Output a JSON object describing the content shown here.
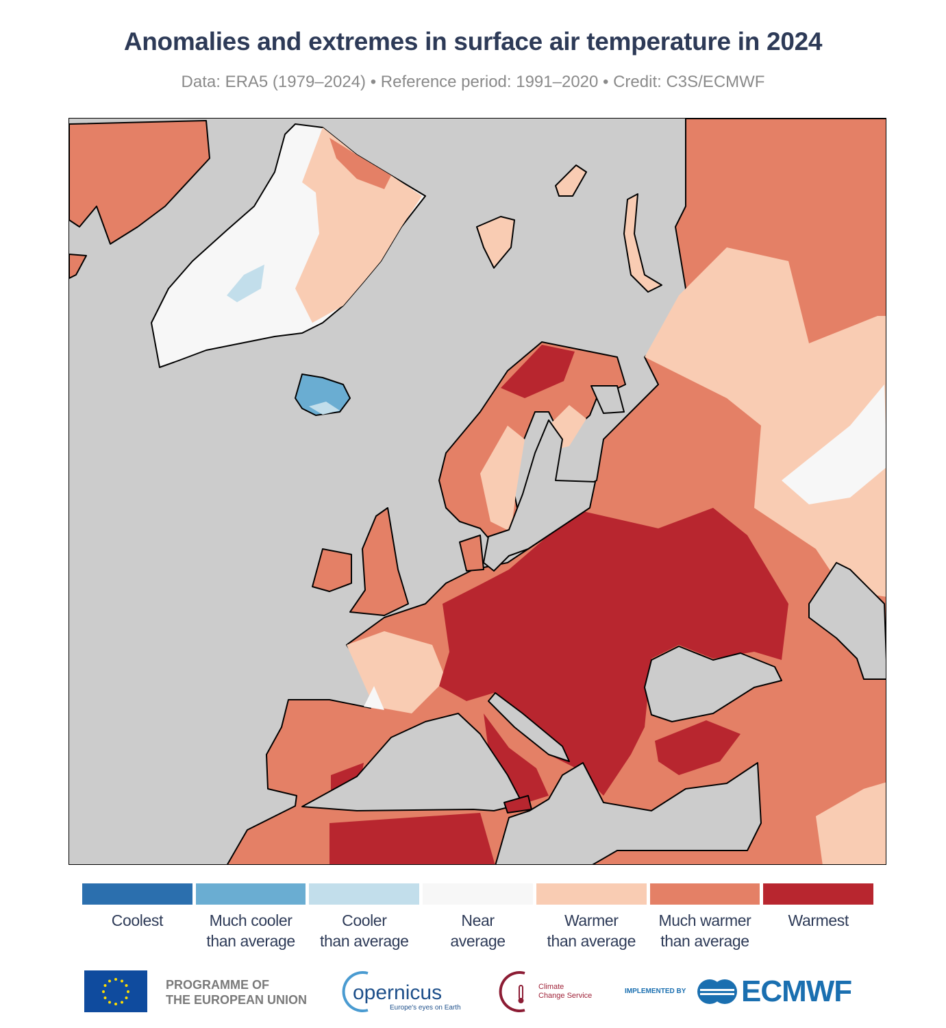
{
  "header": {
    "title": "Anomalies and extremes in surface air temperature in 2024",
    "subtitle": "Data: ERA5 (1979–2024) • Reference period: 1991–2020 • Credit: C3S/ECMWF"
  },
  "map": {
    "region": "Europe",
    "colors": {
      "ocean": "#cccccc",
      "coolest": "#2b6fae",
      "much_cooler": "#6aadd2",
      "cooler": "#c2deeb",
      "near_average": "#f7f7f7",
      "warmer": "#f9ccb3",
      "much_warmer": "#e48066",
      "warmest": "#b8262f"
    }
  },
  "legend": [
    {
      "line1": "Coolest",
      "line2": "",
      "color": "#2b6fae"
    },
    {
      "line1": "Much cooler",
      "line2": "than average",
      "color": "#6aadd2"
    },
    {
      "line1": "Cooler",
      "line2": "than average",
      "color": "#c2deeb"
    },
    {
      "line1": "Near",
      "line2": "average",
      "color": "#f7f7f7"
    },
    {
      "line1": "Warmer",
      "line2": "than average",
      "color": "#f9ccb3"
    },
    {
      "line1": "Much warmer",
      "line2": "than average",
      "color": "#e48066"
    },
    {
      "line1": "Warmest",
      "line2": "",
      "color": "#b8262f"
    }
  ],
  "footer": {
    "eu_line1": "PROGRAMME OF",
    "eu_line2": "THE EUROPEAN UNION",
    "copernicus": "opernicus",
    "copernicus_tagline": "Europe's eyes on Earth",
    "c3s_line1": "Climate",
    "c3s_line2": "Change Service",
    "implemented_by": "IMPLEMENTED BY",
    "ecmwf": "ECMWF"
  }
}
